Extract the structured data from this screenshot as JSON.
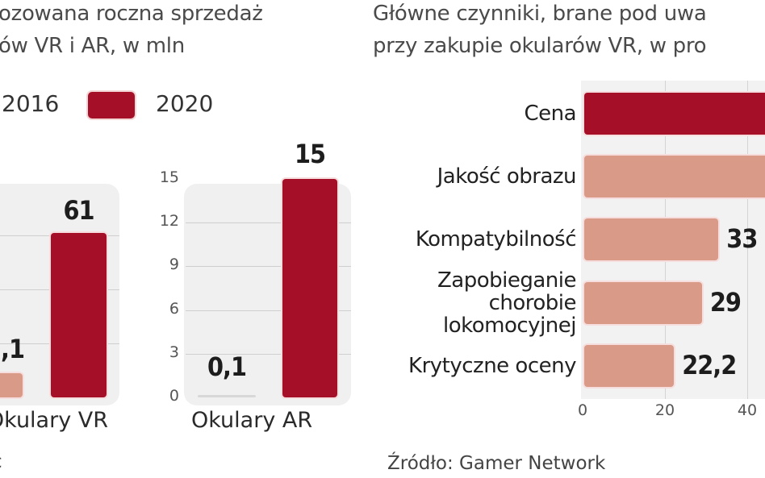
{
  "chart_data": [
    {
      "type": "bar",
      "title_lines": [
        "ozowana roczna sprzedaż",
        "ów VR i AR, w mln"
      ],
      "legend": [
        {
          "name": "2016",
          "color": "#d99a88"
        },
        {
          "name": "2020",
          "color": "#a50f28"
        }
      ],
      "panels": [
        {
          "category": "Okulary VR",
          "series": [
            {
              "name": "2016",
              "value": null,
              "value_label": ",1"
            },
            {
              "name": "2020",
              "value": 61,
              "value_label": "61"
            }
          ],
          "ylim": [
            0,
            61
          ],
          "gridlines": [
            20,
            40,
            60
          ]
        },
        {
          "category": "Okulary AR",
          "series": [
            {
              "name": "2016",
              "value": 0.1,
              "value_label": "0,1"
            },
            {
              "name": "2020",
              "value": 15,
              "value_label": "15"
            }
          ],
          "ylim": [
            0,
            15
          ],
          "yticks": [
            "0",
            "3",
            "6",
            "9",
            "12",
            "15"
          ],
          "gridlines": [
            3,
            6,
            9,
            12
          ]
        }
      ],
      "source_fragment": "c"
    },
    {
      "type": "bar",
      "orientation": "horizontal",
      "title_lines": [
        "Główne czynniki, brane pod uwa",
        "przy zakupie okularów VR, w pro"
      ],
      "categories": [
        [
          "Cena"
        ],
        [
          "Jakość obrazu"
        ],
        [
          "Kompatybilność"
        ],
        [
          "Zapobieganie",
          "chorobie",
          "lokomocyjnej"
        ],
        [
          "Krytyczne oceny"
        ]
      ],
      "values": [
        null,
        null,
        33,
        29,
        22.2
      ],
      "value_labels": [
        "",
        "",
        "33",
        "29",
        "22,2"
      ],
      "colors": [
        "#a50f28",
        "#d99a88",
        "#d99a88",
        "#d99a88",
        "#d99a88"
      ],
      "xticks": [
        "0",
        "20",
        "40"
      ],
      "xlim": [
        0,
        40
      ],
      "grid": true,
      "source": "Źródło: Gamer Network"
    }
  ]
}
